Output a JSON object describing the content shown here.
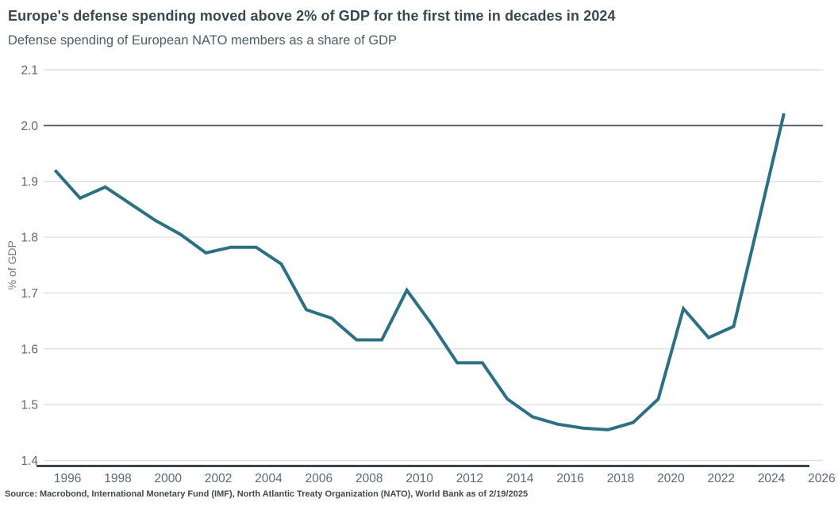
{
  "header": {
    "title": "Europe's defense spending moved above 2% of GDP for the first time in decades in 2024",
    "subtitle": "Defense spending of European NATO members as a share of GDP"
  },
  "footer": {
    "source": "Source: Macrobond, International Monetary Fund (IMF), North Atlantic Treaty Organization (NATO), World Bank as of 2/19/2025"
  },
  "colors": {
    "line": "#2b7083",
    "grid": "#d9dcdd",
    "grid_emphasis": "#4a5157",
    "axis_baseline": "#3c444b",
    "title_text": "#374850",
    "subtitle_text": "#4e5d66",
    "tick_text": "#5c6873",
    "source_text": "#41494f"
  },
  "chart_data": {
    "type": "line",
    "title": "Europe's defense spending moved above 2% of GDP for the first time in decades in 2024",
    "subtitle": "Defense spending of European NATO members as a share of GDP",
    "xlabel": "",
    "ylabel": "% of GDP",
    "series_name": "Defense spending of European NATO members as a share of GDP",
    "x": [
      1995,
      1996,
      1997,
      1998,
      1999,
      2000,
      2001,
      2002,
      2003,
      2004,
      2005,
      2006,
      2007,
      2008,
      2009,
      2010,
      2011,
      2012,
      2013,
      2014,
      2015,
      2016,
      2017,
      2018,
      2019,
      2020,
      2021,
      2022,
      2023,
      2024
    ],
    "y": [
      1.92,
      1.87,
      1.89,
      1.86,
      1.83,
      1.805,
      1.772,
      1.782,
      1.782,
      1.752,
      1.67,
      1.655,
      1.616,
      1.616,
      1.705,
      1.643,
      1.575,
      1.575,
      1.51,
      1.478,
      1.465,
      1.458,
      1.455,
      1.468,
      1.51,
      1.672,
      1.62,
      1.64,
      1.83,
      2.022
    ],
    "ylim": [
      1.4,
      2.1
    ],
    "xlim": [
      1995,
      2026.5
    ],
    "yticks": [
      2.1,
      2.0,
      1.9,
      1.8,
      1.7,
      1.6,
      1.5,
      1.4
    ],
    "xticks": [
      1996,
      1998,
      2000,
      2002,
      2004,
      2006,
      2008,
      2010,
      2012,
      2014,
      2016,
      2018,
      2020,
      2022,
      2024,
      2026
    ],
    "emphasized_gridline": 2.0,
    "grid": "horizontal",
    "legend": "none"
  }
}
